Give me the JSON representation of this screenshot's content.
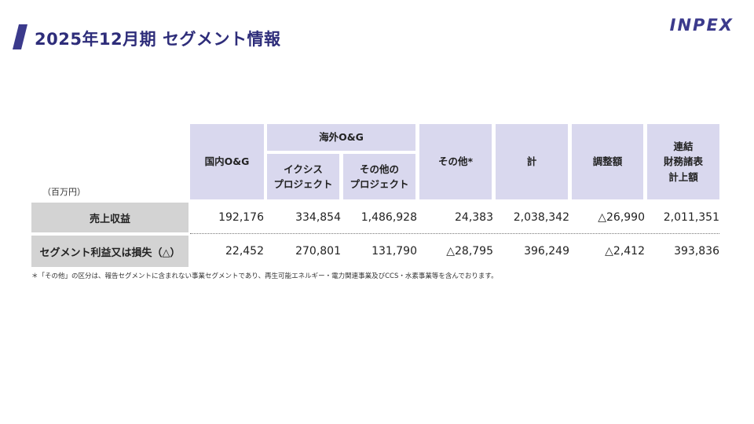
{
  "page": {
    "title": "2025年12月期 セグメント情報",
    "logo": "INPEX",
    "unit": "（百万円）",
    "footnote": "＊「その他」の区分は、報告セグメントに含まれない事業セグメントであり、再生可能エネルギー・電力関連事業及びCCS・水素事業等を含んでおります。"
  },
  "table": {
    "headers": {
      "domestic": "国内O&G",
      "overseas_group": "海外O&G",
      "ichthys": [
        "イクシス",
        "プロジェクト"
      ],
      "other_projects": [
        "その他の",
        "プロジェクト"
      ],
      "others": "その他*",
      "total": "計",
      "adjustments": "調整額",
      "consolidated": [
        "連結",
        "財務諸表",
        "計上額"
      ]
    },
    "rows": [
      {
        "label": "売上収益",
        "values": [
          "192,176",
          "334,854",
          "1,486,928",
          "24,383",
          "2,038,342",
          "△26,990",
          "2,011,351"
        ]
      },
      {
        "label": "セグメント利益又は損失（△）",
        "values": [
          "22,452",
          "270,801",
          "131,790",
          "△28,795",
          "396,249",
          "△2,412",
          "393,836"
        ]
      }
    ]
  }
}
